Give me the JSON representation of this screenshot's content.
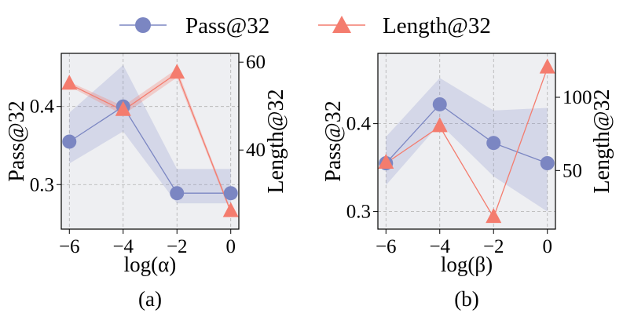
{
  "legend": {
    "items": [
      {
        "label": "Pass@32",
        "color": "#7b86c2",
        "marker": "circle"
      },
      {
        "label": "Length@32",
        "color": "#f47c6e",
        "marker": "triangle"
      }
    ]
  },
  "chart_data": [
    {
      "type": "line",
      "caption": "(a)",
      "xlabel": "log(α)",
      "ylabel_left": "Pass@32",
      "ylabel_right": "Length@32",
      "x": [
        -6,
        -4,
        -2,
        0
      ],
      "xticks": [
        "−6",
        "−4",
        "−2",
        "0"
      ],
      "xlim": [
        -6.3,
        0.3
      ],
      "grid": true,
      "left_axis": {
        "ylim": [
          0.243,
          0.468
        ],
        "ticks": [
          0.3,
          0.4
        ],
        "tick_labels": [
          "0.3",
          "0.4"
        ]
      },
      "right_axis": {
        "ylim": [
          22,
          62
        ],
        "ticks": [
          40,
          60
        ],
        "tick_labels": [
          "40",
          "60"
        ]
      },
      "series": [
        {
          "name": "Pass@32",
          "axis": "left",
          "values": [
            0.355,
            0.4,
            0.289,
            0.289
          ],
          "band_lower": [
            0.327,
            0.368,
            0.276,
            0.276
          ],
          "band_upper": [
            0.392,
            0.453,
            0.32,
            0.32
          ]
        },
        {
          "name": "Length@32",
          "axis": "right",
          "values": [
            55,
            49,
            57.5,
            26
          ],
          "band_lower": [
            54.5,
            48,
            56.5,
            25.5
          ],
          "band_upper": [
            55.5,
            50,
            58.5,
            26.5
          ]
        }
      ]
    },
    {
      "type": "line",
      "caption": "(b)",
      "xlabel": "log(β)",
      "ylabel_left": "Pass@32",
      "ylabel_right": "Length@32",
      "x": [
        -6,
        -4,
        -2,
        0
      ],
      "xticks": [
        "−6",
        "−4",
        "−2",
        "0"
      ],
      "xlim": [
        -6.3,
        0.3
      ],
      "grid": true,
      "left_axis": {
        "ylim": [
          0.28,
          0.48
        ],
        "ticks": [
          0.3,
          0.4
        ],
        "tick_labels": [
          "0.3",
          "0.4"
        ]
      },
      "right_axis": {
        "ylim": [
          10,
          130
        ],
        "ticks": [
          50,
          100
        ],
        "tick_labels": [
          "50",
          "100"
        ]
      },
      "series": [
        {
          "name": "Pass@32",
          "axis": "left",
          "values": [
            0.355,
            0.422,
            0.378,
            0.355
          ],
          "band_lower": [
            0.33,
            0.4,
            0.34,
            0.3
          ],
          "band_upper": [
            0.385,
            0.452,
            0.415,
            0.418
          ]
        },
        {
          "name": "Length@32",
          "axis": "right",
          "values": [
            55,
            80,
            18,
            120
          ]
        }
      ]
    }
  ]
}
